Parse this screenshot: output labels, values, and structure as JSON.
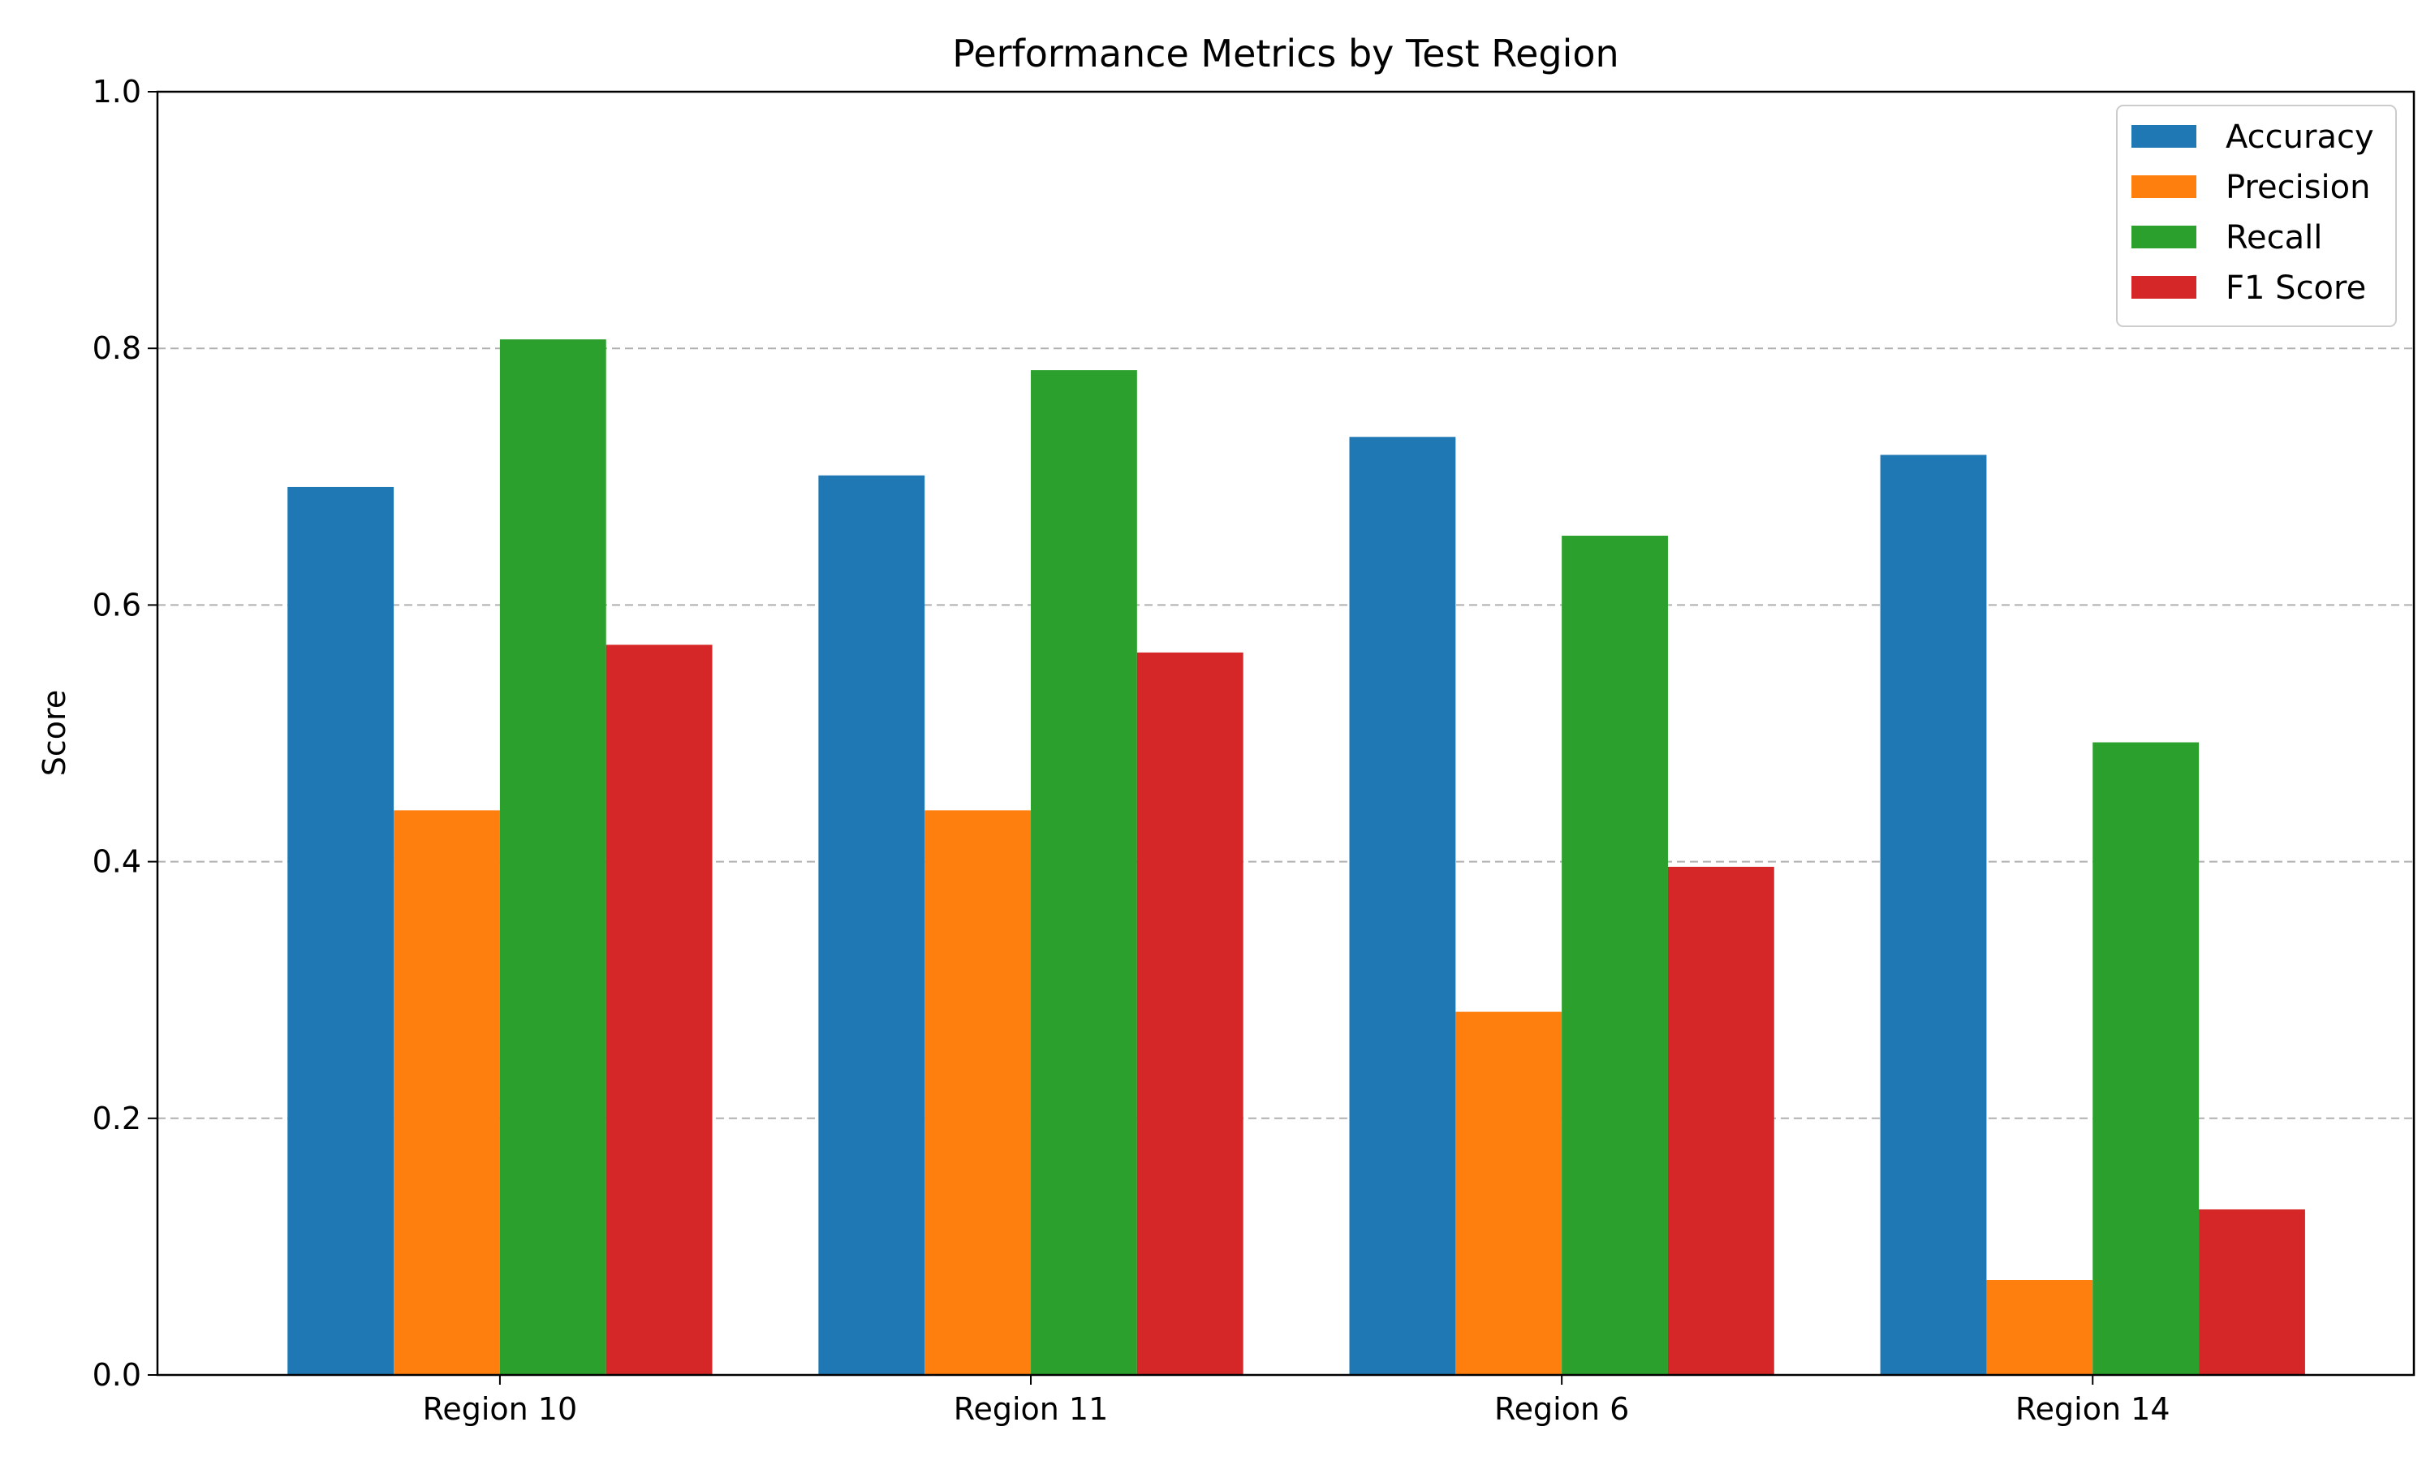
{
  "chart_data": {
    "type": "bar",
    "title": "Performance Metrics by Test Region",
    "xlabel": "",
    "ylabel": "Score",
    "ylim": [
      0,
      1.0
    ],
    "yticks": [
      "0.0",
      "0.2",
      "0.4",
      "0.6",
      "0.8",
      "1.0"
    ],
    "grid": "y-dashed",
    "legend_position": "top-right",
    "categories": [
      "Region 10",
      "Region 11",
      "Region 6",
      "Region 14"
    ],
    "series": [
      {
        "name": "Accuracy",
        "color": "#1f77b4",
        "values": [
          0.692,
          0.701,
          0.731,
          0.717
        ]
      },
      {
        "name": "Precision",
        "color": "#ff7f0e",
        "values": [
          0.44,
          0.44,
          0.283,
          0.074
        ]
      },
      {
        "name": "Recall",
        "color": "#2ca02c",
        "values": [
          0.807,
          0.783,
          0.654,
          0.493
        ]
      },
      {
        "name": "F1 Score",
        "color": "#d62728",
        "values": [
          0.569,
          0.563,
          0.396,
          0.129
        ]
      }
    ]
  }
}
